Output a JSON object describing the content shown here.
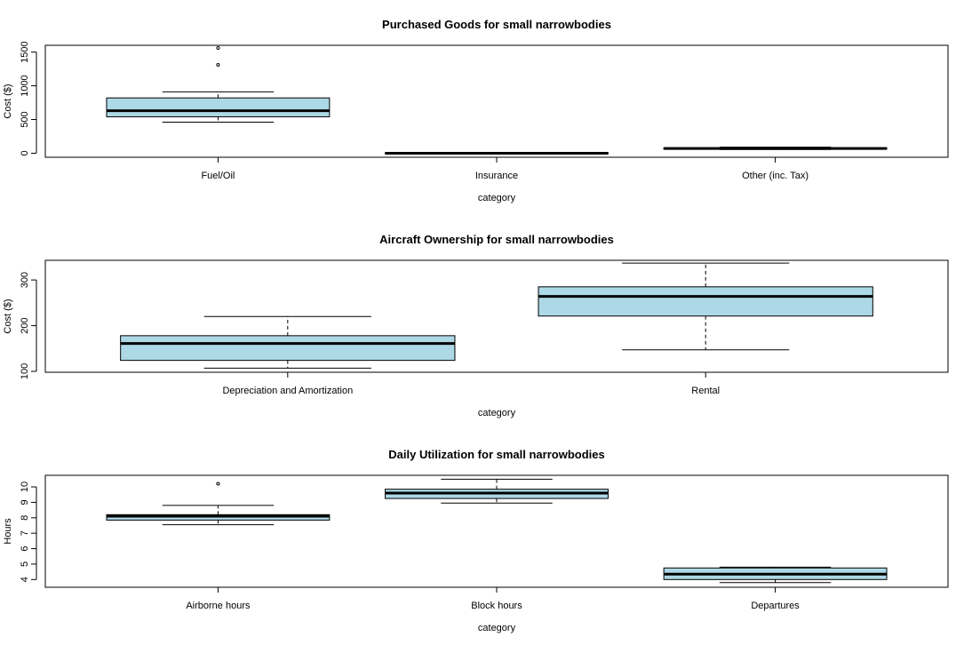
{
  "charts": [
    {
      "type": "box",
      "title": "Purchased Goods for small narrowbodies",
      "xlabel": "category",
      "ylabel": "Cost ($)",
      "ylim": [
        -60,
        1600
      ],
      "yticks": [
        0,
        500,
        1000,
        1500
      ],
      "box_color": "#add8e6",
      "categories": [
        {
          "name": "Fuel/Oil",
          "whisker_low": 460,
          "q1": 540,
          "median": 630,
          "q3": 820,
          "whisker_high": 910,
          "outliers": [
            1310,
            1560
          ]
        },
        {
          "name": "Insurance",
          "whisker_low": -10,
          "q1": -5,
          "median": 0,
          "q3": 5,
          "whisker_high": 10,
          "outliers": []
        },
        {
          "name": "Other (inc. Tax)",
          "whisker_low": 55,
          "q1": 60,
          "median": 70,
          "q3": 80,
          "whisker_high": 90,
          "outliers": []
        }
      ]
    },
    {
      "type": "box",
      "title": "Aircraft Ownership for small narrowbodies",
      "xlabel": "category",
      "ylabel": "Cost ($)",
      "ylim": [
        98,
        343
      ],
      "yticks": [
        100,
        200,
        300
      ],
      "box_color": "#add8e6",
      "categories": [
        {
          "name": "Depreciation and Amortization",
          "whisker_low": 107,
          "q1": 124,
          "median": 161,
          "q3": 178,
          "whisker_high": 220,
          "outliers": []
        },
        {
          "name": "Rental",
          "whisker_low": 147,
          "q1": 221,
          "median": 264,
          "q3": 285,
          "whisker_high": 337,
          "outliers": []
        }
      ]
    },
    {
      "type": "box",
      "title": "Daily Utilization for small narrowbodies",
      "xlabel": "category",
      "ylabel": "Hours",
      "ylim": [
        3.5,
        10.75
      ],
      "yticks": [
        4,
        5,
        6,
        7,
        8,
        9,
        10
      ],
      "box_color": "#add8e6",
      "categories": [
        {
          "name": "Airborne hours",
          "whisker_low": 7.55,
          "q1": 7.85,
          "median": 8.1,
          "q3": 8.2,
          "whisker_high": 8.8,
          "outliers": [
            10.2
          ]
        },
        {
          "name": "Block hours",
          "whisker_low": 8.95,
          "q1": 9.25,
          "median": 9.6,
          "q3": 9.85,
          "whisker_high": 10.5,
          "outliers": []
        },
        {
          "name": "Departures",
          "whisker_low": 3.8,
          "q1": 4.0,
          "median": 4.35,
          "q3": 4.75,
          "whisker_high": 4.8,
          "outliers": []
        }
      ]
    }
  ]
}
